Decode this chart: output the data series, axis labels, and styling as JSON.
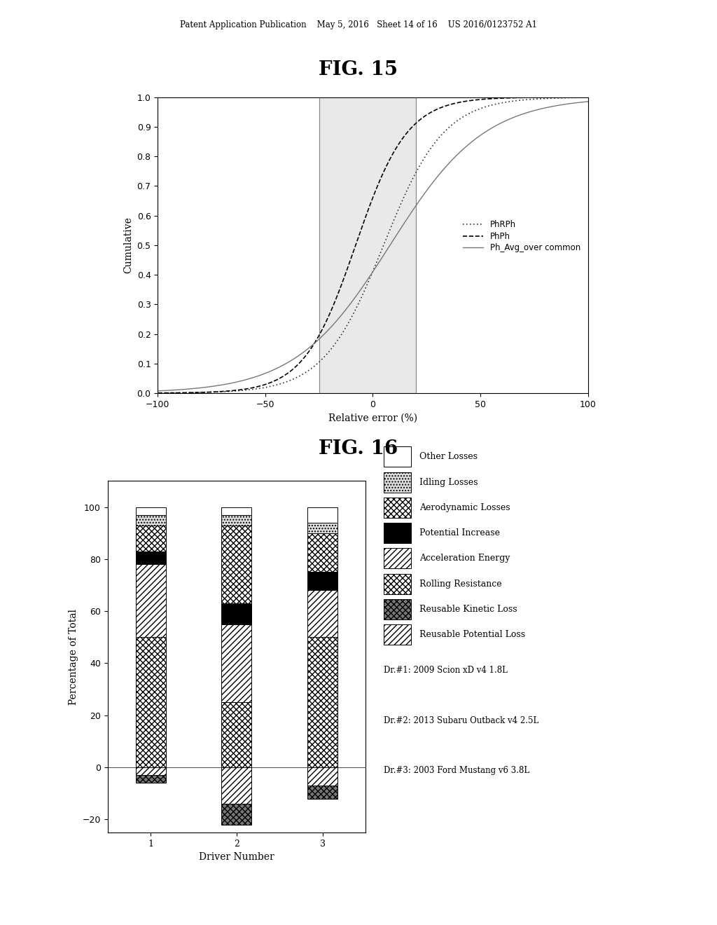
{
  "fig15_title": "FIG. 15",
  "fig16_title": "FIG. 16",
  "header_text": "Patent Application Publication    May 5, 2016   Sheet 14 of 16    US 2016/0123752 A1",
  "fig15": {
    "xlabel": "Relative error (%)",
    "ylabel": "Cumulative",
    "xlim": [
      -100,
      100
    ],
    "ylim": [
      0,
      1.0
    ],
    "yticks": [
      0,
      0.1,
      0.2,
      0.3,
      0.4,
      0.5,
      0.6,
      0.7,
      0.8,
      0.9,
      1
    ],
    "xticks": [
      -100,
      -50,
      0,
      50,
      100
    ],
    "shade_xmin": -25,
    "shade_xmax": 20,
    "legend_labels": [
      "PhRPh",
      "PhPh",
      "Ph_Avg_over common"
    ]
  },
  "fig16": {
    "xlabel": "Driver Number",
    "ylabel": "Percentage of Total",
    "ylim": [
      -25,
      110
    ],
    "yticks": [
      -20,
      0,
      20,
      40,
      60,
      80,
      100
    ],
    "bar_width": 0.35,
    "categories": [
      1,
      2,
      3
    ],
    "legend_labels": [
      "Other Losses",
      "Idling Losses",
      "Aerodynamic Losses",
      "Potential Increase",
      "Acceleration Energy",
      "Rolling Resistance",
      "Reusable Kinetic Loss",
      "Reusable Potential Loss"
    ],
    "note_lines": [
      "Dr.#1: 2009 Scion xD v4 1.8L",
      "Dr.#2: 2013 Subaru Outback v4 2.5L",
      "Dr.#3: 2003 Ford Mustang v6 3.8L"
    ],
    "data": {
      "Rolling Resistance": [
        50,
        25,
        50
      ],
      "Acceleration Energy": [
        28,
        30,
        18
      ],
      "Potential Increase": [
        5,
        8,
        7
      ],
      "Aerodynamic Losses": [
        10,
        30,
        15
      ],
      "Idling Losses": [
        4,
        4,
        4
      ],
      "Other Losses": [
        3,
        3,
        6
      ],
      "Reusable Kinetic Loss": [
        -3,
        -8,
        -5
      ],
      "Reusable Potential Loss": [
        -3,
        -14,
        -7
      ]
    }
  }
}
